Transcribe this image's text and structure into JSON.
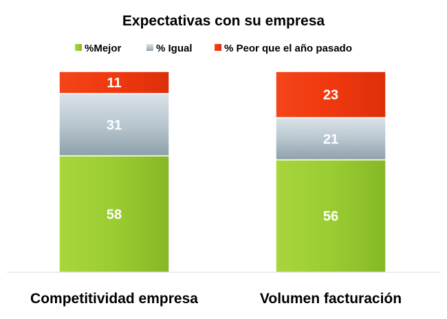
{
  "chart_data": {
    "type": "bar",
    "stacked": true,
    "title": "Expectativas con su empresa",
    "categories": [
      "Competitividad empresa",
      "Volumen facturación"
    ],
    "series": [
      {
        "name": "%Mejor",
        "values": [
          58,
          56
        ],
        "color": "#9acd32"
      },
      {
        "name": "% Igual",
        "values": [
          31,
          21
        ],
        "color": "#b4c3cc"
      },
      {
        "name": "% Peor que el año pasado",
        "values": [
          11,
          23
        ],
        "color": "#f0380e"
      }
    ],
    "ylim": [
      0,
      100
    ],
    "legend_position": "top",
    "grid": false,
    "xlabel": "",
    "ylabel": ""
  }
}
